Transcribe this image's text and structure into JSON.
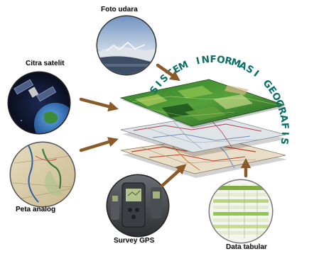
{
  "diagram": {
    "title": "SISTEM INFORMASI GEOGRAFIS",
    "sources": [
      {
        "id": "foto-udara",
        "label": "Foto udara",
        "icon": "aerial-photo-icon"
      },
      {
        "id": "citra-satelit",
        "label": "Citra satelit",
        "icon": "satellite-icon"
      },
      {
        "id": "peta-analog",
        "label": "Peta analog",
        "icon": "paper-map-icon"
      },
      {
        "id": "survey-gps",
        "label": "Survey GPS",
        "icon": "gps-device-icon"
      },
      {
        "id": "data-tabular",
        "label": "Data tabular",
        "icon": "spreadsheet-icon"
      }
    ],
    "layers": [
      "raster-layer",
      "vector-layer",
      "road-map-layer"
    ],
    "colors": {
      "arrow": "#8a5a2b",
      "title": "#0d6f6a",
      "raster": "#3f8f2e",
      "map": "#d8c8a8"
    }
  }
}
